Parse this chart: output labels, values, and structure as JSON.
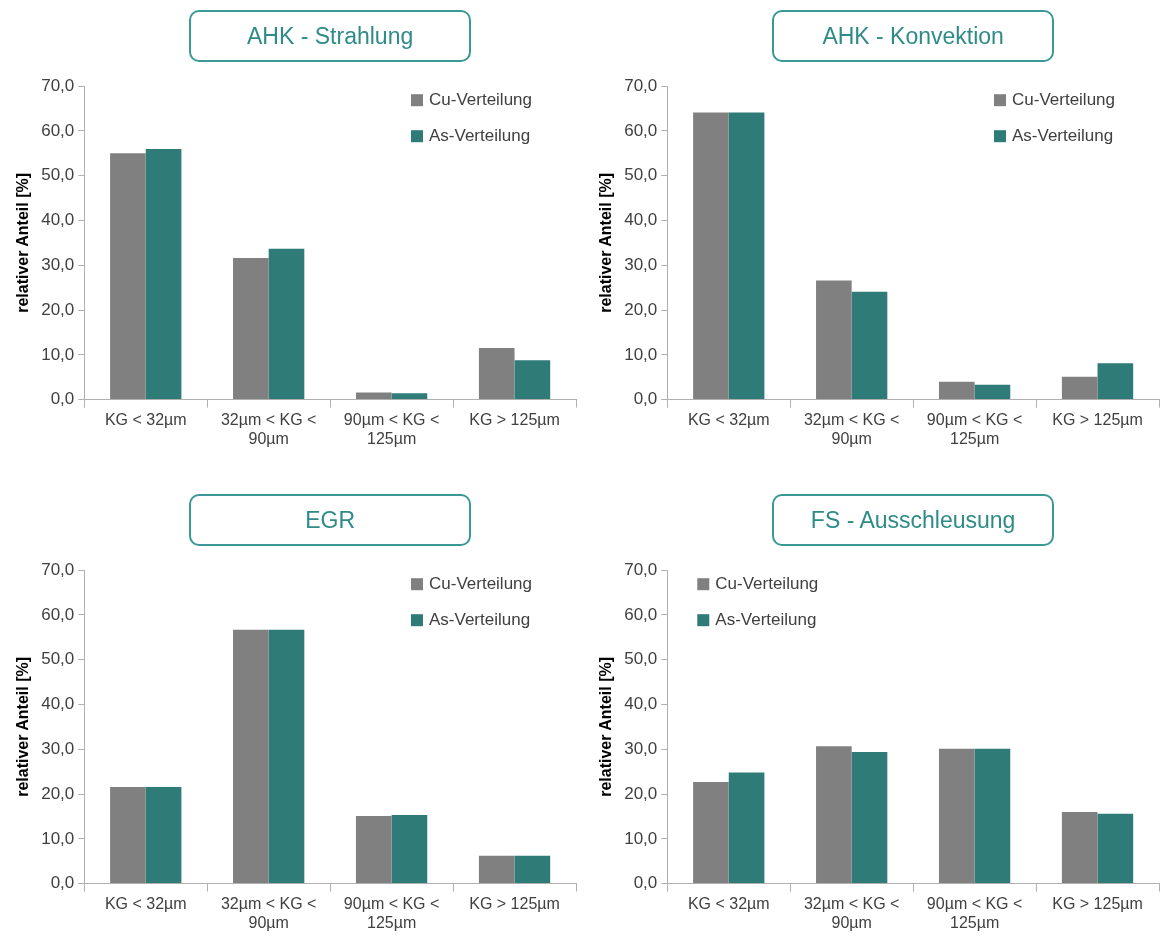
{
  "chart_data": [
    {
      "type": "bar",
      "title": "AHK - Strahlung",
      "ylabel": "relativer Anteil [%]",
      "categories": [
        "KG < 32µm",
        "32µm < KG < 90µm",
        "90µm < KG < 125µm",
        "KG > 125µm"
      ],
      "series": [
        {
          "name": "Cu-Verteilung",
          "color": "#808080",
          "values": [
            55.0,
            31.6,
            1.6,
            11.5
          ]
        },
        {
          "name": "As-Verteilung",
          "color": "#2e7b78",
          "values": [
            56.0,
            33.7,
            1.4,
            8.8
          ]
        }
      ],
      "ylim": [
        0,
        70
      ],
      "yticks": [
        {
          "value": 0,
          "label": "0,0"
        },
        {
          "value": 10,
          "label": "10,0"
        },
        {
          "value": 20,
          "label": "20,0"
        },
        {
          "value": 30,
          "label": "30,0"
        },
        {
          "value": 40,
          "label": "40,0"
        },
        {
          "value": 50,
          "label": "50,0"
        },
        {
          "value": 60,
          "label": "60,0"
        },
        {
          "value": 70,
          "label": "70,0"
        }
      ],
      "grid": false,
      "legend": "top right"
    },
    {
      "type": "bar",
      "title": "AHK - Konvektion",
      "ylabel": "relativer Anteil [%]",
      "categories": [
        "KG < 32µm",
        "32µm < KG < 90µm",
        "90µm < KG < 125µm",
        "KG > 125µm"
      ],
      "series": [
        {
          "name": "Cu-Verteilung",
          "color": "#808080",
          "values": [
            64.1,
            26.6,
            4.0,
            5.1
          ]
        },
        {
          "name": "As-Verteilung",
          "color": "#2e7b78",
          "values": [
            64.1,
            24.1,
            3.3,
            8.1
          ]
        }
      ],
      "ylim": [
        0,
        70
      ],
      "yticks": [
        {
          "value": 0,
          "label": "0,0"
        },
        {
          "value": 10,
          "label": "10,0"
        },
        {
          "value": 20,
          "label": "20,0"
        },
        {
          "value": 30,
          "label": "30,0"
        },
        {
          "value": 40,
          "label": "40,0"
        },
        {
          "value": 50,
          "label": "50,0"
        },
        {
          "value": 60,
          "label": "60,0"
        },
        {
          "value": 70,
          "label": "70,0"
        }
      ],
      "grid": false,
      "legend": "top right"
    },
    {
      "type": "bar",
      "title": "EGR",
      "ylabel": "relativer Anteil [%]",
      "categories": [
        "KG < 32µm",
        "32µm < KG < 90µm",
        "90µm < KG < 125µm",
        "KG > 125µm"
      ],
      "series": [
        {
          "name": "Cu-Verteilung",
          "color": "#808080",
          "values": [
            21.6,
            56.7,
            15.1,
            6.2
          ]
        },
        {
          "name": "As-Verteilung",
          "color": "#2e7b78",
          "values": [
            21.6,
            56.7,
            15.3,
            6.2
          ]
        }
      ],
      "ylim": [
        0,
        70
      ],
      "yticks": [
        {
          "value": 0,
          "label": "0,0"
        },
        {
          "value": 10,
          "label": "10,0"
        },
        {
          "value": 20,
          "label": "20,0"
        },
        {
          "value": 30,
          "label": "30,0"
        },
        {
          "value": 40,
          "label": "40,0"
        },
        {
          "value": 50,
          "label": "50,0"
        },
        {
          "value": 60,
          "label": "60,0"
        },
        {
          "value": 70,
          "label": "70,0"
        }
      ],
      "grid": false,
      "legend": "top right"
    },
    {
      "type": "bar",
      "title": "FS - Ausschleusung",
      "ylabel": "relativer Anteil [%]",
      "categories": [
        "KG < 32µm",
        "32µm < KG < 90µm",
        "90µm < KG < 125µm",
        "KG > 125µm"
      ],
      "series": [
        {
          "name": "Cu-Verteilung",
          "color": "#808080",
          "values": [
            22.7,
            30.7,
            30.1,
            16.0
          ]
        },
        {
          "name": "As-Verteilung",
          "color": "#2e7b78",
          "values": [
            24.8,
            29.4,
            30.1,
            15.6
          ]
        }
      ],
      "ylim": [
        0,
        70
      ],
      "yticks": [
        {
          "value": 0,
          "label": "0,0"
        },
        {
          "value": 10,
          "label": "10,0"
        },
        {
          "value": 20,
          "label": "20,0"
        },
        {
          "value": 30,
          "label": "30,0"
        },
        {
          "value": 40,
          "label": "40,0"
        },
        {
          "value": 50,
          "label": "50,0"
        },
        {
          "value": 60,
          "label": "60,0"
        },
        {
          "value": 70,
          "label": "70,0"
        }
      ],
      "grid": false,
      "legend": "top left"
    }
  ]
}
